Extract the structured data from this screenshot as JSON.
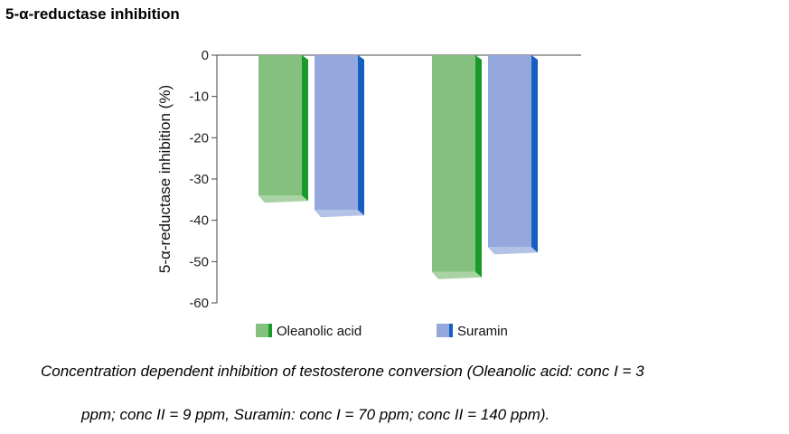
{
  "chart_data": {
    "type": "bar",
    "title": "5-α-reductase inhibition",
    "ylabel": "5-α-reductase inhibition (%)",
    "xlabel": "",
    "ylim": [
      -60,
      0
    ],
    "yticks": [
      "0",
      "-10",
      "-20",
      "-30",
      "-40",
      "-50",
      "-60"
    ],
    "yticks_values": [
      0,
      -10,
      -20,
      -30,
      -40,
      -50,
      -60
    ],
    "categories": [
      "",
      ""
    ],
    "series": [
      {
        "name": "Oleanolic acid",
        "values": [
          -34,
          -52.5
        ],
        "color": "#85c17e",
        "side_color": "#1a9a2a"
      },
      {
        "name": "Suramin",
        "values": [
          -37.5,
          -46.5
        ],
        "color": "#95a8dd",
        "side_color": "#1460c0"
      }
    ],
    "legend": "bottom",
    "grid": false
  },
  "caption": {
    "line1": "Concentration dependent inhibition of testosterone conversion (Oleanolic acid: conc I = 3",
    "line2": "ppm; conc II = 9 ppm, Suramin: conc I = 70 ppm; conc II = 140 ppm)."
  }
}
